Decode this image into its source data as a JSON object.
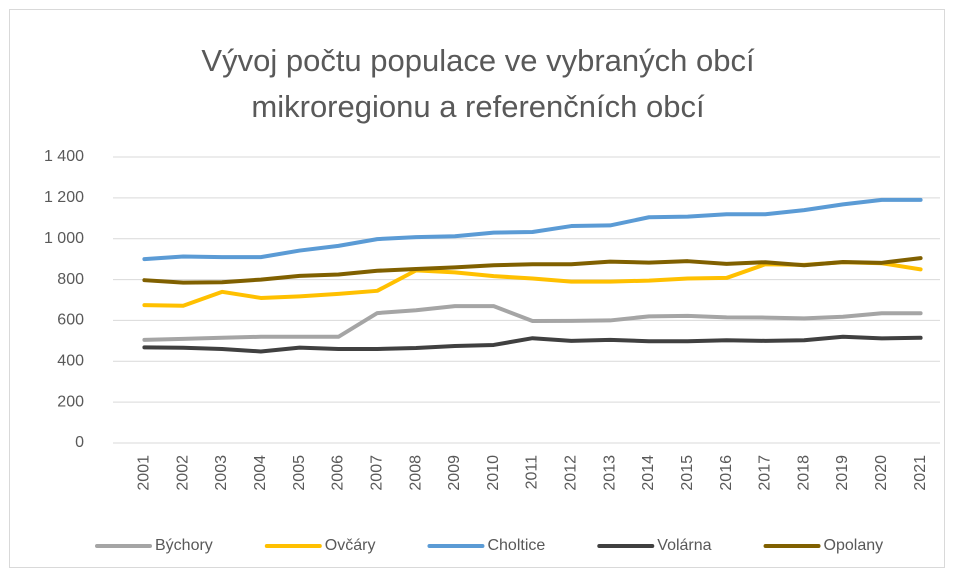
{
  "chart_data": {
    "type": "line",
    "title": "Vývoj počtu populace ve vybraných obcí mikroregionu a referenčních obcí",
    "categories": [
      "2001",
      "2002",
      "2003",
      "2004",
      "2005",
      "2006",
      "2007",
      "2008",
      "2009",
      "2010",
      "2011",
      "2012",
      "2013",
      "2014",
      "2015",
      "2016",
      "2017",
      "2018",
      "2019",
      "2020",
      "2021"
    ],
    "series": [
      {
        "name": "Býchory",
        "color": "#a5a5a5",
        "values": [
          505,
          510,
          515,
          520,
          520,
          520,
          636,
          650,
          670,
          670,
          597,
          598,
          600,
          620,
          622,
          615,
          614,
          610,
          618,
          635,
          635
        ]
      },
      {
        "name": "Ovčáry",
        "color": "#ffc000",
        "values": [
          675,
          672,
          740,
          710,
          718,
          730,
          745,
          845,
          835,
          817,
          805,
          790,
          790,
          795,
          805,
          808,
          875,
          872,
          885,
          880,
          850
        ]
      },
      {
        "name": "Choltice",
        "color": "#5b9bd5",
        "values": [
          900,
          913,
          910,
          910,
          942,
          965,
          998,
          1008,
          1012,
          1030,
          1033,
          1062,
          1065,
          1105,
          1108,
          1120,
          1120,
          1140,
          1168,
          1190,
          1190
        ]
      },
      {
        "name": "Volárna",
        "color": "#404040",
        "values": [
          468,
          466,
          460,
          448,
          467,
          460,
          460,
          465,
          475,
          480,
          513,
          500,
          505,
          498,
          498,
          503,
          500,
          503,
          520,
          512,
          515
        ]
      },
      {
        "name": "Opolany",
        "color": "#806000",
        "values": [
          797,
          785,
          787,
          800,
          818,
          825,
          843,
          852,
          860,
          870,
          875,
          875,
          888,
          883,
          890,
          877,
          885,
          870,
          886,
          882,
          905
        ]
      }
    ],
    "ylim": [
      0,
      1400
    ],
    "yticks": [
      0,
      200,
      400,
      600,
      800,
      {
        "value": 1000,
        "label": "1 000"
      },
      {
        "value": 1200,
        "label": "1 200"
      },
      {
        "value": 1400,
        "label": "1 400"
      }
    ],
    "grid": true,
    "legend": "bottom"
  }
}
